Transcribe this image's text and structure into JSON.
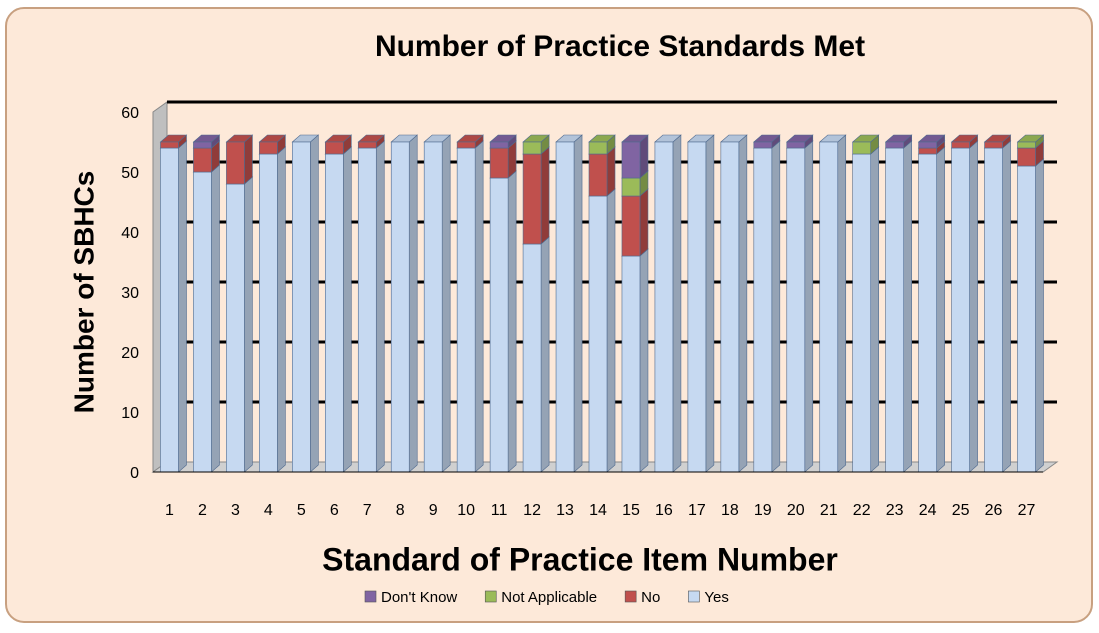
{
  "chart_data": {
    "type": "bar3d_stacked",
    "title": "Number of Practice Standards Met",
    "y_label": "Number of SBHCs",
    "x_label": "Standard of Practice Item Number",
    "categories": [
      "1",
      "2",
      "3",
      "4",
      "5",
      "6",
      "7",
      "8",
      "9",
      "10",
      "11",
      "12",
      "13",
      "14",
      "15",
      "16",
      "17",
      "18",
      "19",
      "20",
      "21",
      "22",
      "23",
      "24",
      "25",
      "26",
      "27"
    ],
    "series": [
      {
        "name": "Don't Know",
        "color": "#8064a2",
        "values": [
          0,
          1,
          0,
          0,
          0,
          0,
          0,
          0,
          0,
          0,
          1,
          0,
          0,
          0,
          6,
          0,
          0,
          0,
          1,
          1,
          0,
          0,
          1,
          1,
          0,
          0,
          0
        ]
      },
      {
        "name": "Not Applicable",
        "color": "#9bbb59",
        "values": [
          0,
          0,
          0,
          0,
          0,
          0,
          0,
          0,
          0,
          0,
          0,
          2,
          0,
          2,
          3,
          0,
          0,
          0,
          0,
          0,
          0,
          2,
          0,
          0,
          0,
          0,
          1
        ]
      },
      {
        "name": "No",
        "color": "#c0504d",
        "values": [
          1,
          4,
          7,
          2,
          0,
          2,
          1,
          0,
          0,
          1,
          5,
          15,
          0,
          7,
          10,
          0,
          0,
          0,
          0,
          0,
          0,
          0,
          0,
          1,
          1,
          1,
          3
        ]
      },
      {
        "name": "Yes",
        "color": "#c6d9f1",
        "values": [
          54,
          50,
          48,
          53,
          55,
          53,
          54,
          55,
          55,
          54,
          49,
          38,
          55,
          46,
          36,
          55,
          55,
          55,
          54,
          54,
          55,
          53,
          54,
          53,
          54,
          54,
          51
        ]
      }
    ],
    "ylim": [
      0,
      60
    ],
    "yticks": [
      0,
      10,
      20,
      30,
      40,
      50,
      60
    ],
    "grid": true,
    "legend": "bottom"
  }
}
